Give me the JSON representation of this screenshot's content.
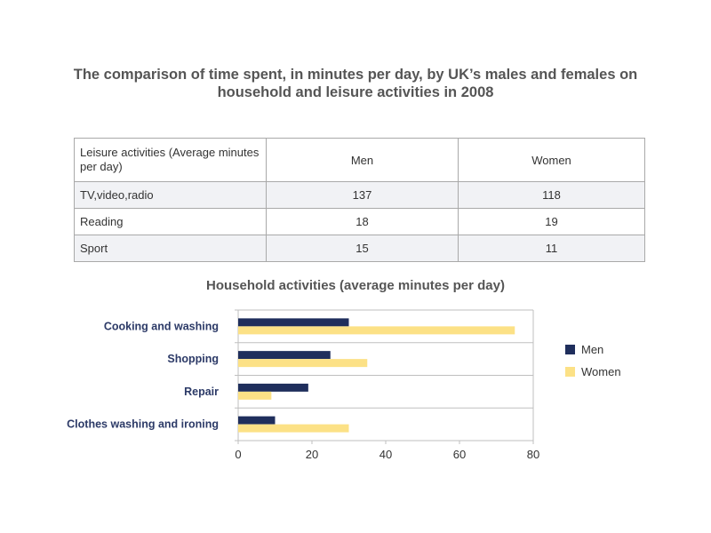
{
  "title_lines": [
    "The comparison of time spent, in minutes per day, by UK’s males and females on",
    "household and leisure activities in 2008"
  ],
  "leisure_table": {
    "headers": [
      "Leisure activities (Average minutes per day)",
      "Men",
      "Women"
    ],
    "rows": [
      [
        "TV,video,radio",
        "137",
        "118"
      ],
      [
        "Reading",
        "18",
        "19"
      ],
      [
        "Sport",
        "15",
        "11"
      ]
    ]
  },
  "chart_data": {
    "type": "bar",
    "orientation": "horizontal",
    "title": "Household activities (average minutes per day)",
    "categories": [
      "Cooking and washing",
      "Shopping",
      "Repair",
      "Clothes washing and ironing"
    ],
    "series": [
      {
        "name": "Men",
        "values": [
          30,
          25,
          19,
          10
        ],
        "color": "#1f2e5c"
      },
      {
        "name": "Women",
        "values": [
          75,
          35,
          9,
          30
        ],
        "color": "#fce186"
      }
    ],
    "xlim": [
      0,
      80
    ],
    "xticks": [
      0,
      20,
      40,
      60,
      80
    ],
    "xlabel": "",
    "ylabel": "",
    "grid": "horizontal separators",
    "legend": "right"
  }
}
